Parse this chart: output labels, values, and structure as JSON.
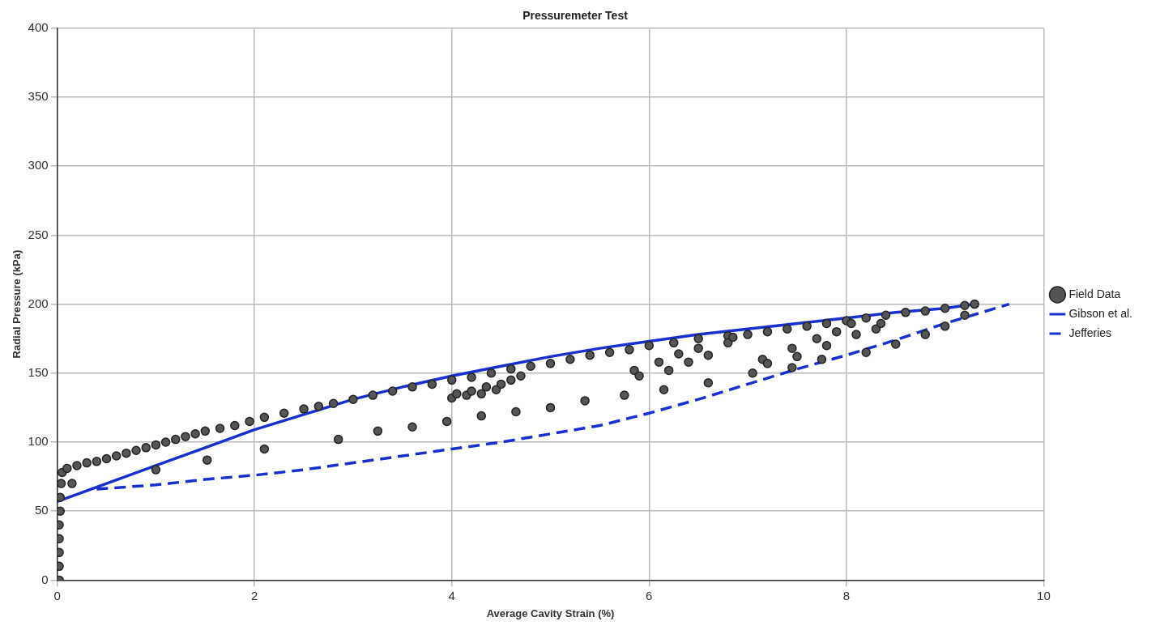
{
  "chart_data": {
    "type": "scatter",
    "title": "Pressuremeter Test",
    "xlabel": "Average Cavity Strain (%)",
    "ylabel": "Radial Pressure (kPa)",
    "xlim": [
      0,
      10
    ],
    "ylim": [
      0,
      400
    ],
    "xticks": [
      0,
      2,
      4,
      6,
      8,
      10
    ],
    "yticks": [
      0,
      50,
      100,
      150,
      200,
      250,
      300,
      350,
      400
    ],
    "grid": true,
    "legend": "right",
    "series": [
      {
        "name": "Field Data",
        "type": "scatter",
        "color": "#555555",
        "marker": "circle",
        "x": [
          0.02,
          0.02,
          0.02,
          0.02,
          0.02,
          0.03,
          0.03,
          0.04,
          0.05,
          0.1,
          0.2,
          0.3,
          0.4,
          0.5,
          0.6,
          0.7,
          0.8,
          0.9,
          1.0,
          1.1,
          1.2,
          1.3,
          1.4,
          1.5,
          1.65,
          1.8,
          1.95,
          2.1,
          2.3,
          2.5,
          2.65,
          2.8,
          3.0,
          3.2,
          3.4,
          3.6,
          3.8,
          4.0,
          4.2,
          4.4,
          4.6,
          4.8,
          5.0,
          5.2,
          5.4,
          5.6,
          5.8,
          6.0,
          6.25,
          6.5,
          6.8,
          7.0,
          7.2,
          7.4,
          7.6,
          7.8,
          8.0,
          8.2,
          8.4,
          8.6,
          8.8,
          9.0,
          9.2,
          9.3,
          0.15,
          1.0,
          1.52,
          2.1,
          2.85,
          3.25,
          3.6,
          3.95,
          4.3,
          4.65,
          5.0,
          5.35,
          5.75,
          6.15,
          6.6,
          7.05,
          7.45,
          7.75,
          8.2,
          8.5,
          8.8,
          9.0,
          9.2,
          4.0,
          4.05,
          4.15,
          4.2,
          4.3,
          4.35,
          4.45,
          4.5,
          4.6,
          4.7,
          5.85,
          5.9,
          6.1,
          6.2,
          6.3,
          6.4,
          6.5,
          6.6,
          6.8,
          6.85,
          7.15,
          7.2,
          7.45,
          7.5,
          7.7,
          7.8,
          7.9,
          8.05,
          8.1,
          8.3,
          8.35
        ],
        "values": [
          0,
          10,
          20,
          30,
          40,
          50,
          60,
          70,
          78,
          81,
          83,
          85,
          86,
          88,
          90,
          92,
          94,
          96,
          98,
          100,
          102,
          104,
          106,
          108,
          110,
          112,
          115,
          118,
          121,
          124,
          126,
          128,
          131,
          134,
          137,
          140,
          142,
          145,
          147,
          150,
          153,
          155,
          157,
          160,
          163,
          165,
          167,
          170,
          172,
          175,
          177,
          178,
          180,
          182,
          184,
          186,
          188,
          190,
          192,
          194,
          195,
          197,
          199,
          200,
          70,
          80,
          87,
          95,
          102,
          108,
          111,
          115,
          119,
          122,
          125,
          130,
          134,
          138,
          143,
          150,
          154,
          160,
          165,
          171,
          178,
          184,
          192,
          132,
          135,
          134,
          137,
          135,
          140,
          138,
          142,
          145,
          148,
          152,
          148,
          158,
          152,
          164,
          158,
          168,
          163,
          172,
          176,
          160,
          157,
          168,
          162,
          175,
          170,
          180,
          186,
          178,
          182,
          186
        ]
      },
      {
        "name": "Gibson et al.",
        "type": "line",
        "color": "#1a2fd0",
        "line_style": "solid",
        "marker": "none",
        "x": [
          0,
          0.5,
          1,
          1.5,
          2,
          2.5,
          3,
          3.5,
          4,
          4.5,
          5,
          5.5,
          6,
          6.5,
          7,
          7.5,
          8,
          8.5,
          9,
          9.3
        ],
        "values": [
          57,
          70,
          83,
          96,
          109,
          120,
          131,
          140,
          148,
          155,
          162,
          168,
          173,
          178,
          182,
          186,
          190,
          194,
          197,
          200
        ]
      },
      {
        "name": "Jefferies",
        "type": "line",
        "color": "#1a2fd0",
        "line_style": "dashed",
        "marker": "none",
        "x": [
          0.4,
          1,
          1.5,
          2,
          2.5,
          3,
          3.5,
          4,
          4.5,
          5,
          5.5,
          6,
          6.5,
          7,
          7.5,
          8,
          8.5,
          9,
          9.65
        ],
        "values": [
          66,
          69,
          73,
          76,
          80,
          85,
          90,
          95,
          100,
          106,
          112,
          121,
          131,
          142,
          153,
          163,
          174,
          186,
          200
        ]
      }
    ]
  }
}
